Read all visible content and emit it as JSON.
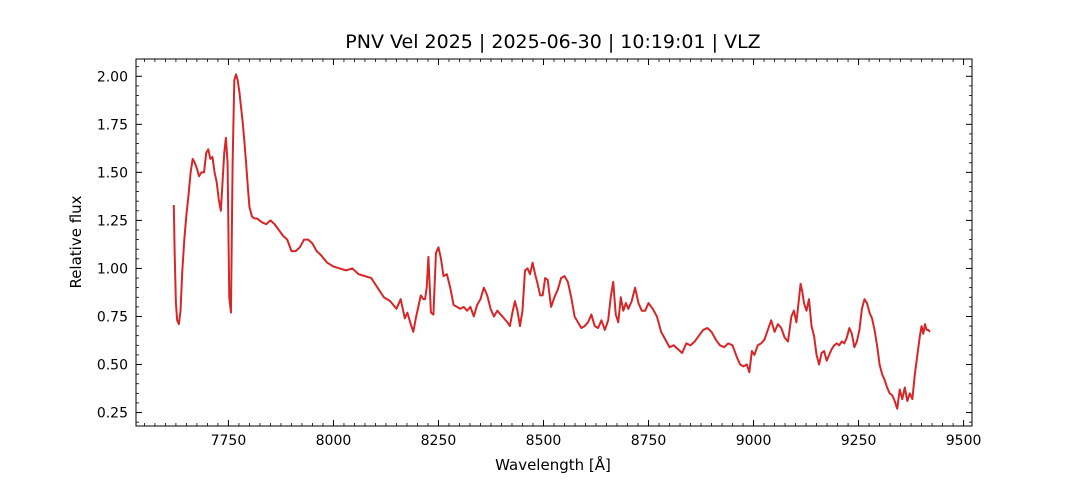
{
  "chart_data": {
    "type": "line",
    "title": "PNV Vel 2025 | 2025-06-30 | 10:19:01 | VLZ",
    "xlabel": "Wavelength [Å]",
    "ylabel": "Relative flux",
    "xlim": [
      7530,
      9520
    ],
    "ylim": [
      0.18,
      2.09
    ],
    "x_ticks": [
      7750,
      8000,
      8250,
      8500,
      8750,
      9000,
      9250,
      9500
    ],
    "x_tick_labels": [
      "7750",
      "8000",
      "8250",
      "8500",
      "8750",
      "9000",
      "9250",
      "9500"
    ],
    "y_ticks": [
      0.25,
      0.5,
      0.75,
      1.0,
      1.25,
      1.5,
      1.75,
      2.0
    ],
    "y_tick_labels": [
      "0.25",
      "0.50",
      "0.75",
      "1.00",
      "1.25",
      "1.50",
      "1.75",
      "2.00"
    ],
    "grid": false,
    "legend": "none",
    "line_color": "#d62728",
    "series": [
      {
        "x": [
          7620,
          7622,
          7625,
          7628,
          7632,
          7636,
          7640,
          7645,
          7650,
          7655,
          7660,
          7665,
          7670,
          7675,
          7680,
          7686,
          7692,
          7697,
          7702,
          7707,
          7712,
          7717,
          7722,
          7727,
          7732,
          7736,
          7740,
          7744,
          7748,
          7752,
          7756,
          7760,
          7764,
          7768,
          7772,
          7776,
          7780,
          7784,
          7788,
          7792,
          7796,
          7800,
          7806,
          7812,
          7818,
          7824,
          7830,
          7840,
          7850,
          7860,
          7870,
          7880,
          7890,
          7900,
          7910,
          7920,
          7930,
          7940,
          7950,
          7960,
          7970,
          7985,
          8000,
          8015,
          8030,
          8045,
          8060,
          8075,
          8090,
          8105,
          8120,
          8135,
          8150,
          8160,
          8170,
          8176,
          8180,
          8184,
          8190,
          8196,
          8202,
          8208,
          8214,
          8218,
          8222,
          8226,
          8232,
          8238,
          8244,
          8250,
          8256,
          8262,
          8270,
          8278,
          8286,
          8294,
          8302,
          8310,
          8318,
          8326,
          8334,
          8342,
          8350,
          8358,
          8366,
          8374,
          8382,
          8390,
          8398,
          8406,
          8414,
          8420,
          8426,
          8432,
          8438,
          8444,
          8450,
          8456,
          8462,
          8468,
          8474,
          8480,
          8486,
          8492,
          8498,
          8504,
          8510,
          8518,
          8526,
          8534,
          8542,
          8550,
          8558,
          8566,
          8574,
          8582,
          8590,
          8598,
          8606,
          8614,
          8622,
          8630,
          8638,
          8646,
          8654,
          8660,
          8666,
          8672,
          8678,
          8684,
          8690,
          8696,
          8702,
          8710,
          8718,
          8726,
          8734,
          8742,
          8750,
          8760,
          8770,
          8780,
          8790,
          8800,
          8810,
          8820,
          8830,
          8840,
          8850,
          8860,
          8870,
          8880,
          8890,
          8900,
          8910,
          8920,
          8930,
          8940,
          8950,
          8960,
          8968,
          8976,
          8984,
          8990,
          8996,
          9002,
          9010,
          9018,
          9026,
          9034,
          9042,
          9050,
          9058,
          9066,
          9074,
          9082,
          9090,
          9096,
          9102,
          9108,
          9112,
          9116,
          9120,
          9126,
          9132,
          9138,
          9144,
          9150,
          9156,
          9162,
          9168,
          9174,
          9180,
          9186,
          9192,
          9198,
          9204,
          9210,
          9216,
          9222,
          9228,
          9234,
          9240,
          9246,
          9252,
          9258,
          9264,
          9270,
          9276,
          9282,
          9288,
          9294,
          9300,
          9306,
          9312,
          9318,
          9324,
          9330,
          9336,
          9342,
          9348,
          9354,
          9360,
          9366,
          9372,
          9378,
          9384,
          9390,
          9396,
          9400,
          9404,
          9408,
          9412,
          9416,
          9420
        ],
        "y": [
          1.33,
          1.08,
          0.82,
          0.73,
          0.71,
          0.78,
          0.98,
          1.15,
          1.28,
          1.38,
          1.5,
          1.57,
          1.55,
          1.52,
          1.48,
          1.5,
          1.5,
          1.6,
          1.62,
          1.57,
          1.58,
          1.5,
          1.45,
          1.36,
          1.3,
          1.45,
          1.6,
          1.68,
          1.55,
          0.85,
          0.77,
          1.55,
          1.98,
          2.01,
          1.98,
          1.92,
          1.84,
          1.76,
          1.66,
          1.55,
          1.43,
          1.32,
          1.27,
          1.26,
          1.26,
          1.25,
          1.24,
          1.23,
          1.25,
          1.23,
          1.2,
          1.17,
          1.15,
          1.09,
          1.09,
          1.11,
          1.15,
          1.15,
          1.13,
          1.09,
          1.07,
          1.03,
          1.01,
          1.0,
          0.99,
          1.0,
          0.97,
          0.96,
          0.95,
          0.9,
          0.85,
          0.83,
          0.79,
          0.84,
          0.74,
          0.77,
          0.74,
          0.71,
          0.67,
          0.74,
          0.8,
          0.86,
          0.84,
          0.84,
          0.9,
          1.06,
          0.77,
          0.76,
          1.08,
          1.11,
          1.05,
          0.96,
          0.97,
          0.9,
          0.81,
          0.8,
          0.79,
          0.8,
          0.78,
          0.8,
          0.75,
          0.81,
          0.84,
          0.9,
          0.86,
          0.79,
          0.75,
          0.78,
          0.76,
          0.74,
          0.72,
          0.7,
          0.77,
          0.83,
          0.78,
          0.7,
          0.78,
          0.99,
          1.0,
          0.97,
          1.03,
          0.97,
          0.92,
          0.86,
          0.86,
          0.95,
          0.94,
          0.8,
          0.85,
          0.89,
          0.95,
          0.96,
          0.93,
          0.85,
          0.75,
          0.72,
          0.69,
          0.7,
          0.72,
          0.76,
          0.7,
          0.69,
          0.73,
          0.68,
          0.73,
          0.85,
          0.93,
          0.76,
          0.72,
          0.85,
          0.78,
          0.82,
          0.79,
          0.83,
          0.9,
          0.82,
          0.78,
          0.78,
          0.82,
          0.79,
          0.75,
          0.67,
          0.63,
          0.59,
          0.6,
          0.58,
          0.56,
          0.61,
          0.6,
          0.62,
          0.65,
          0.68,
          0.69,
          0.67,
          0.63,
          0.6,
          0.59,
          0.61,
          0.6,
          0.54,
          0.5,
          0.49,
          0.5,
          0.46,
          0.57,
          0.55,
          0.6,
          0.61,
          0.63,
          0.68,
          0.73,
          0.67,
          0.71,
          0.69,
          0.64,
          0.62,
          0.75,
          0.78,
          0.72,
          0.84,
          0.92,
          0.88,
          0.82,
          0.78,
          0.84,
          0.7,
          0.65,
          0.55,
          0.5,
          0.56,
          0.57,
          0.52,
          0.55,
          0.58,
          0.6,
          0.61,
          0.6,
          0.62,
          0.61,
          0.64,
          0.69,
          0.66,
          0.59,
          0.62,
          0.68,
          0.79,
          0.84,
          0.82,
          0.77,
          0.74,
          0.68,
          0.6,
          0.5,
          0.45,
          0.42,
          0.38,
          0.35,
          0.34,
          0.31,
          0.27,
          0.37,
          0.32,
          0.38,
          0.31,
          0.35,
          0.32,
          0.45,
          0.55,
          0.65,
          0.7,
          0.66,
          0.71,
          0.68,
          0.68,
          0.67
        ]
      }
    ]
  }
}
